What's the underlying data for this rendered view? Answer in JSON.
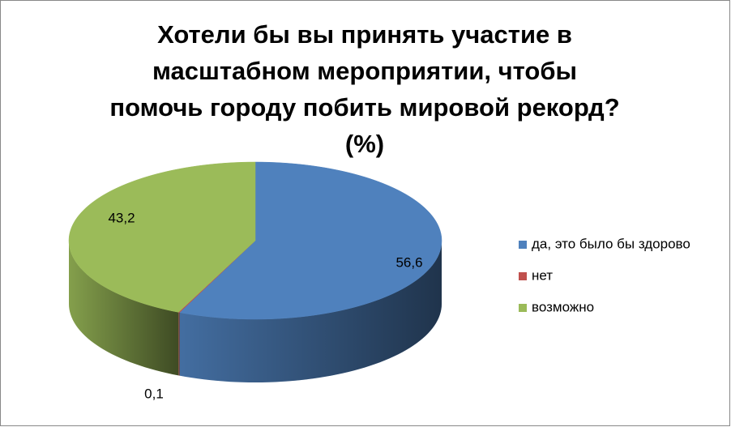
{
  "chart_data": {
    "type": "pie3d",
    "title": "Хотели бы вы принять участие в масштабном мероприятии, чтобы помочь городу побить мировой рекорд?(%)",
    "categories": [
      "да, это было бы здорово",
      "нет",
      "возможно"
    ],
    "values": [
      56.6,
      0.1,
      43.2
    ],
    "value_labels": [
      "56,6",
      "0,1",
      "43,2"
    ],
    "colors": [
      "#4f81bd",
      "#c0504d",
      "#9bbb59"
    ],
    "legend": "right"
  }
}
